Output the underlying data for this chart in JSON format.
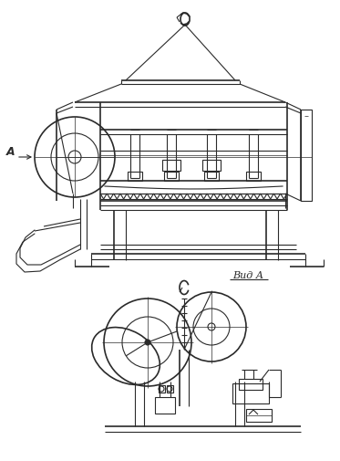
{
  "bg_color": "#ffffff",
  "line_color": "#2a2a2a",
  "lw": 0.8,
  "tlw": 0.5,
  "thklw": 1.2,
  "fig_width": 3.73,
  "fig_height": 5.05,
  "dpi": 100
}
